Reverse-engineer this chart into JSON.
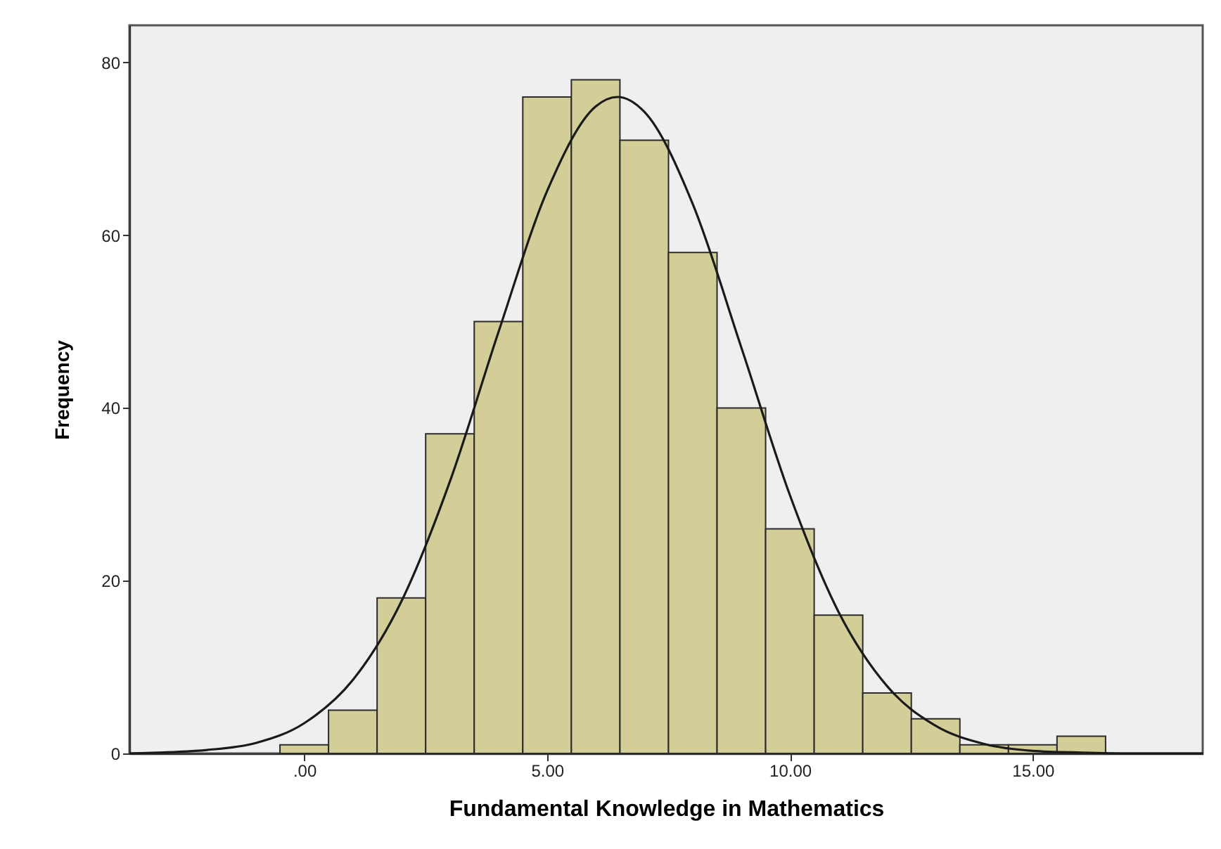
{
  "chart_data": {
    "type": "histogram",
    "xlabel": "Fundamental Knowledge in Mathematics",
    "ylabel": "Frequency",
    "bins": [
      -0.5,
      0.5,
      1.5,
      2.5,
      3.5,
      4.5,
      5.5,
      6.5,
      7.5,
      8.5,
      9.5,
      10.5,
      11.5,
      12.5,
      13.5,
      14.5,
      15.5,
      16.5
    ],
    "values": [
      1,
      5,
      18,
      37,
      50,
      76,
      78,
      71,
      58,
      40,
      26,
      16,
      7,
      4,
      1,
      1,
      2
    ],
    "color": "#d3ce97",
    "xlim": [
      -3.6,
      18.5
    ],
    "ylim": [
      0,
      84.3
    ],
    "xticks": [
      {
        "value": 0,
        "label": ".00"
      },
      {
        "value": 5,
        "label": "5.00"
      },
      {
        "value": 10,
        "label": "10.00"
      },
      {
        "value": 15,
        "label": "15.00"
      }
    ],
    "yticks": [
      0,
      20,
      40,
      60,
      80
    ],
    "series": [
      {
        "type": "line",
        "color": "#1a1a1a",
        "x": [
          -3.6,
          -3,
          -2,
          -1,
          0,
          1,
          2,
          3,
          4,
          5,
          6,
          6.45,
          7,
          8,
          9,
          10,
          11,
          12,
          13,
          14,
          15,
          16,
          17,
          18.5
        ],
        "values": [
          0,
          0.1,
          0.4,
          1.2,
          3.5,
          8.5,
          17.6,
          31.5,
          48.8,
          65.1,
          74.9,
          76,
          74.3,
          63.6,
          47,
          29.9,
          16.4,
          7.8,
          3.2,
          1.1,
          0.3,
          0.1,
          0,
          0
        ]
      }
    ]
  }
}
